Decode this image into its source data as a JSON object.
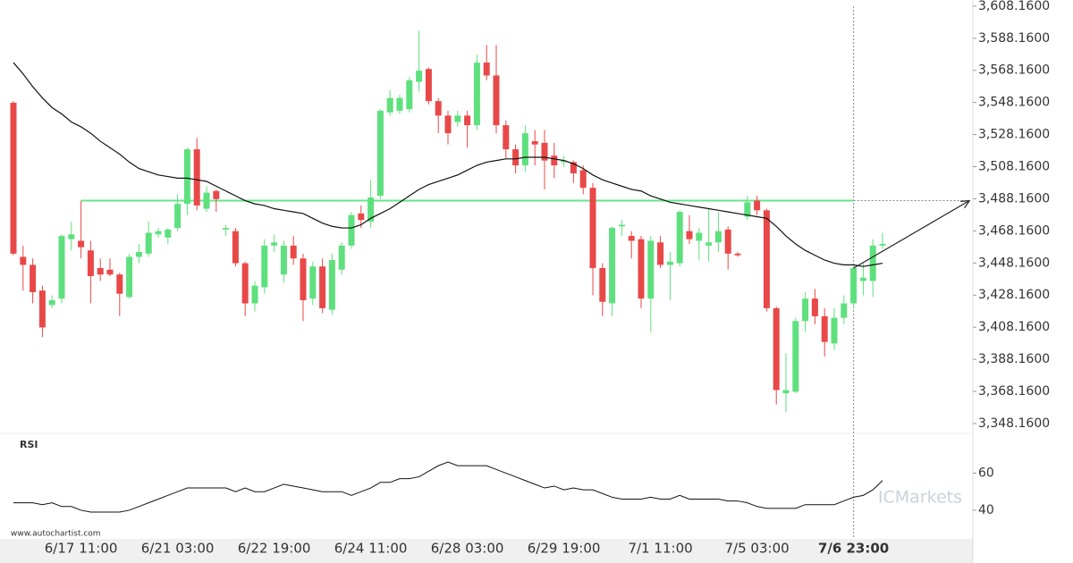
{
  "chart_data": {
    "type": "candlestick",
    "categories": [
      null,
      null,
      null,
      null,
      null,
      null,
      null,
      "6/17 11:00",
      null,
      null,
      null,
      null,
      null,
      null,
      null,
      null,
      null,
      "6/21 03:00",
      null,
      null,
      null,
      null,
      null,
      null,
      null,
      null,
      null,
      "6/22 19:00",
      null,
      null,
      null,
      null,
      null,
      null,
      null,
      null,
      null,
      "6/24 11:00",
      null,
      null,
      null,
      null,
      null,
      null,
      null,
      null,
      null,
      "6/28 03:00",
      null,
      null,
      null,
      null,
      null,
      null,
      null,
      null,
      null,
      "6/29 19:00",
      null,
      null,
      null,
      null,
      null,
      null,
      null,
      null,
      null,
      "7/1 11:00",
      null,
      null,
      null,
      null,
      null,
      null,
      null,
      null,
      null,
      "7/5 03:00",
      null,
      null,
      null,
      null,
      null,
      null,
      null,
      null,
      null,
      "7/6 23:00",
      null,
      null,
      null
    ],
    "open": [
      3548,
      3452,
      3447,
      3431,
      3422,
      3426,
      3463,
      3462,
      3456,
      3445,
      3444,
      3441,
      3427,
      3452,
      3454,
      3466,
      3464,
      3470,
      3485,
      3519,
      3482,
      3493,
      3469,
      3468,
      3448,
      3423,
      3433,
      3459,
      3441,
      3459,
      3451,
      3426,
      3446,
      3419,
      3444,
      3459,
      3479,
      3474,
      3490,
      3542,
      3543,
      3544,
      3561,
      3569,
      3549,
      3540,
      3536,
      3540,
      3534,
      3573,
      3565,
      3534,
      3519,
      3509,
      3524,
      3523,
      3515,
      3511,
      3511,
      3506,
      3495,
      3445,
      3423,
      3471,
      3465,
      3463,
      3426,
      3461,
      3447,
      3448,
      3468,
      3462,
      3459,
      3461,
      3469,
      3454,
      3477,
      3487,
      3481,
      3420,
      3367,
      3368,
      3412,
      3426,
      3415,
      3398,
      3414,
      3423,
      3437,
      3437,
      3459
    ],
    "high": [
      3549,
      3459,
      3451,
      3434,
      3428,
      3466,
      3474,
      3487,
      3462,
      3451,
      3451,
      3442,
      3454,
      3460,
      3474,
      3470,
      3470,
      3491,
      3520,
      3526,
      3496,
      3494,
      3472,
      3470,
      3449,
      3437,
      3463,
      3466,
      3462,
      3465,
      3454,
      3449,
      3451,
      3454,
      3461,
      3480,
      3484,
      3500,
      3544,
      3556,
      3553,
      3564,
      3593,
      3570,
      3551,
      3543,
      3543,
      3543,
      3578,
      3584,
      3584,
      3537,
      3522,
      3534,
      3531,
      3531,
      3523,
      3515,
      3512,
      3509,
      3498,
      3448,
      3471,
      3475,
      3468,
      3465,
      3465,
      3465,
      3455,
      3481,
      3478,
      3470,
      3482,
      3480,
      3471,
      3455,
      3490,
      3490,
      3482,
      3421,
      3392,
      3414,
      3430,
      3432,
      3420,
      3420,
      3428,
      3447,
      3448,
      3463,
      3467
    ],
    "low": [
      3453,
      3431,
      3423,
      3402,
      3420,
      3423,
      3456,
      3451,
      3423,
      3437,
      3440,
      3415,
      3426,
      3448,
      3452,
      3464,
      3460,
      3468,
      3478,
      3481,
      3480,
      3480,
      3465,
      3446,
      3415,
      3418,
      3429,
      3455,
      3436,
      3447,
      3412,
      3422,
      3417,
      3416,
      3441,
      3457,
      3470,
      3470,
      3488,
      3540,
      3541,
      3542,
      3555,
      3547,
      3529,
      3522,
      3533,
      3520,
      3531,
      3562,
      3529,
      3513,
      3504,
      3505,
      3509,
      3494,
      3501,
      3508,
      3498,
      3491,
      3428,
      3415,
      3415,
      3465,
      3451,
      3420,
      3405,
      3445,
      3425,
      3446,
      3460,
      3450,
      3449,
      3455,
      3444,
      3452,
      3475,
      3478,
      3418,
      3360,
      3355,
      3367,
      3405,
      3410,
      3390,
      3394,
      3410,
      3420,
      3428,
      3427,
      3457
    ],
    "close": [
      3454,
      3447,
      3430,
      3408,
      3425,
      3465,
      3466,
      3458,
      3440,
      3441,
      3441,
      3429,
      3452,
      3455,
      3467,
      3468,
      3469,
      3485,
      3519,
      3484,
      3492,
      3488,
      3470,
      3448,
      3423,
      3434,
      3459,
      3461,
      3459,
      3451,
      3425,
      3446,
      3420,
      3450,
      3459,
      3478,
      3475,
      3489,
      3543,
      3551,
      3551,
      3562,
      3568,
      3549,
      3540,
      3529,
      3540,
      3534,
      3573,
      3565,
      3534,
      3519,
      3509,
      3529,
      3522,
      3512,
      3509,
      3512,
      3504,
      3495,
      3445,
      3424,
      3470,
      3472,
      3462,
      3426,
      3462,
      3447,
      3449,
      3480,
      3463,
      3467,
      3461,
      3468,
      3454,
      3453,
      3486,
      3481,
      3420,
      3369,
      3369,
      3412,
      3426,
      3415,
      3399,
      3414,
      3423,
      3445,
      3439,
      3459,
      3460
    ],
    "ma": [
      3573,
      3566,
      3558,
      3551,
      3545,
      3541,
      3536,
      3533,
      3529,
      3524,
      3520,
      3516,
      3511,
      3507,
      3505,
      3503,
      3502,
      3501,
      3501,
      3500,
      3499,
      3496,
      3493,
      3490,
      3487,
      3485,
      3484,
      3482,
      3481,
      3480,
      3479,
      3476,
      3473,
      3471,
      3470,
      3470,
      3472,
      3476,
      3479,
      3482,
      3486,
      3490,
      3494,
      3497,
      3499,
      3501,
      3503,
      3506,
      3509,
      3511,
      3512,
      3513,
      3513,
      3514,
      3514,
      3514,
      3513,
      3512,
      3510,
      3507,
      3503,
      3500,
      3498,
      3496,
      3494,
      3493,
      3490,
      3488,
      3486,
      3485,
      3484,
      3483,
      3482,
      3481,
      3480,
      3479,
      3478,
      3477,
      3476,
      3471,
      3465,
      3460,
      3456,
      3453,
      3450,
      3448,
      3447,
      3447,
      3446,
      3447,
      3448
    ],
    "rsi": [
      44,
      44,
      44,
      43,
      44,
      42,
      42,
      40,
      39,
      39,
      39,
      39,
      40,
      42,
      44,
      46,
      48,
      50,
      52,
      52,
      52,
      52,
      52,
      50,
      52,
      50,
      50,
      52,
      54,
      53,
      52,
      51,
      50,
      50,
      50,
      48,
      50,
      52,
      55,
      55,
      57,
      57,
      58,
      61,
      64,
      66,
      64,
      64,
      64,
      64,
      62,
      60,
      58,
      56,
      54,
      52,
      53,
      51,
      52,
      51,
      51,
      49,
      47,
      46,
      46,
      46,
      47,
      46,
      46,
      48,
      46,
      46,
      46,
      46,
      45,
      45,
      44,
      42,
      41,
      41,
      41,
      41,
      43,
      43,
      43,
      43,
      45,
      47,
      48,
      51,
      56
    ],
    "up_color": "#5ee07e",
    "down_color": "#e84848",
    "ylim": [
      3342,
      3612
    ],
    "yticks": [
      {
        "value": 3348.16,
        "label": "3,348.1600"
      },
      {
        "value": 3368.16,
        "label": "3,368.1600"
      },
      {
        "value": 3388.16,
        "label": "3,388.1600"
      },
      {
        "value": 3408.16,
        "label": "3,408.1600"
      },
      {
        "value": 3428.16,
        "label": "3,428.1600"
      },
      {
        "value": 3448.16,
        "label": "3,448.1600"
      },
      {
        "value": 3468.16,
        "label": "3,468.1600"
      },
      {
        "value": 3488.16,
        "label": "3,488.1600"
      },
      {
        "value": 3508.16,
        "label": "3,508.1600"
      },
      {
        "value": 3528.16,
        "label": "3,528.1600"
      },
      {
        "value": 3548.16,
        "label": "3,548.1600"
      },
      {
        "value": 3568.16,
        "label": "3,568.1600"
      },
      {
        "value": 3588.16,
        "label": "3,588.1600"
      },
      {
        "value": 3608.16,
        "label": "3,608.1600"
      }
    ],
    "rsi_label": "RSI",
    "rsi_ylim": [
      26,
      79
    ],
    "rsi_yticks": [
      40,
      60
    ],
    "level": 3487,
    "level_color": "#66e68a",
    "level_from_index": 7,
    "current_index": 87,
    "projection": {
      "x": [
        87,
        99
      ],
      "y": [
        3445,
        3487
      ]
    },
    "watermark": "ICMarkets",
    "source": "www.autochartist.com"
  }
}
